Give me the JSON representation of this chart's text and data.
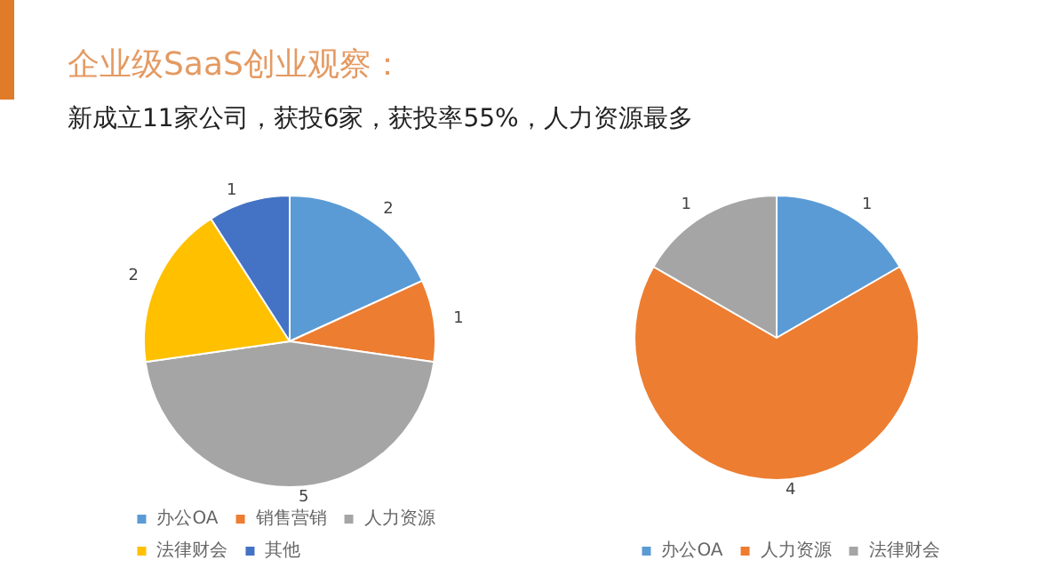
{
  "chart_data": [
    {
      "type": "pie",
      "title": "企业级SaaS创业观察：",
      "subtitle": "新成立11家公司，获投6家，获投率55%，人力资源最多",
      "categories": [
        "办公OA",
        "销售营销",
        "人力资源",
        "法律财会",
        "其他"
      ],
      "values": [
        2,
        1,
        5,
        2,
        1
      ],
      "colors": [
        "#5b9bd5",
        "#ed7d31",
        "#a5a5a5",
        "#ffc000",
        "#4472c4"
      ],
      "data_labels": true,
      "legend": "bottom"
    },
    {
      "type": "pie",
      "categories": [
        "办公OA",
        "人力资源",
        "法律财会"
      ],
      "values": [
        1,
        4,
        1
      ],
      "colors": [
        "#5b9bd5",
        "#ed7d31",
        "#a5a5a5"
      ],
      "data_labels": true,
      "legend": "bottom"
    }
  ]
}
